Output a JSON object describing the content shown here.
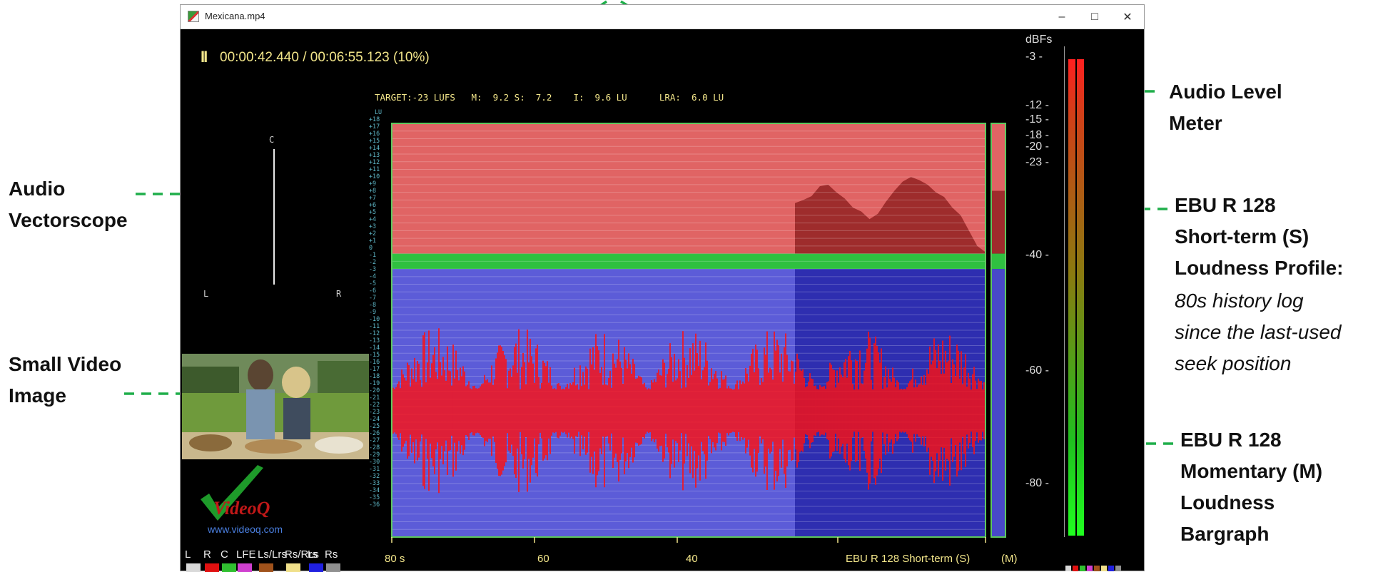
{
  "window": {
    "title": "Mexicana.mp4",
    "min_glyph": "–",
    "max_glyph": "□",
    "close_glyph": "✕"
  },
  "player": {
    "state_glyph": "II",
    "timecode": "00:00:42.440 / 00:06:55.123 (10%)",
    "progress": 0.1,
    "stats": "TARGET:-23 LUFS   M:  9.2 S:  7.2    I:  9.6 LU      LRA:  6.0 LU"
  },
  "vectorscope": {
    "c": "C",
    "l": "L",
    "r": "R"
  },
  "lu_scale": {
    "unit": "LU",
    "ticks": [
      "+18",
      "+17",
      "+16",
      "+15",
      "+14",
      "+13",
      "+12",
      "+11",
      "+10",
      "+9",
      "+8",
      "+7",
      "+6",
      "+5",
      "+4",
      "+3",
      "+2",
      "+1",
      "0",
      "-1",
      "-2",
      "-3",
      "-4",
      "-5",
      "-6",
      "-7",
      "-8",
      "-9",
      "-10",
      "-11",
      "-12",
      "-13",
      "-14",
      "-15",
      "-16",
      "-17",
      "-18",
      "-19",
      "-20",
      "-21",
      "-22",
      "-23",
      "-24",
      "-25",
      "-26",
      "-27",
      "-28",
      "-29",
      "-30",
      "-31",
      "-32",
      "-33",
      "-34",
      "-35",
      "-36"
    ]
  },
  "history_axis": {
    "labels": [
      "80 s",
      "60",
      "40"
    ],
    "caption": "EBU R 128 Short-term (S)",
    "m_caption": "(M)"
  },
  "dbfs_meter": {
    "unit": "dBFs",
    "ticks": [
      "-3",
      "-12",
      "-15",
      "-18",
      "-20",
      "-23",
      "-40",
      "-60",
      "-80"
    ],
    "level_db": -3
  },
  "logo": {
    "text": "VideoQ",
    "url": "www.videoq.com"
  },
  "channels": [
    {
      "label": "L",
      "color": "#d9d9d9"
    },
    {
      "label": "R",
      "color": "#e01010"
    },
    {
      "label": "C",
      "color": "#30c030"
    },
    {
      "label": "LFE",
      "color": "#d040d0"
    },
    {
      "label": "Ls/Lrs",
      "color": "#a0521b"
    },
    {
      "label": "Rs/Rrs",
      "color": "#f0e08a"
    },
    {
      "label": "Ls",
      "color": "#2020e0"
    },
    {
      "label": "Rs",
      "color": "#909090"
    }
  ],
  "annotations": {
    "vectorscope": [
      "Audio",
      "Vectorscope"
    ],
    "video": [
      "Small Video",
      "Image"
    ],
    "level_meter": [
      "Audio Level",
      "Meter"
    ],
    "short_term": [
      "EBU R 128",
      "Short-term (S)",
      "Loudness Profile:"
    ],
    "short_term_note": [
      "80s history log",
      "since the last-used",
      "seek position"
    ],
    "momentary": [
      "EBU R 128",
      "Momentary (M)",
      "Loudness",
      "Bargraph"
    ]
  },
  "colors": {
    "red_zone": "#e06464",
    "green_band": "#2fc040",
    "blue_zone": "#5c5cd8",
    "waveform": "#ff1010",
    "profile": "#9e2c2c",
    "arrow": "#1fae4a",
    "text_yellow": "#f3e68a"
  }
}
